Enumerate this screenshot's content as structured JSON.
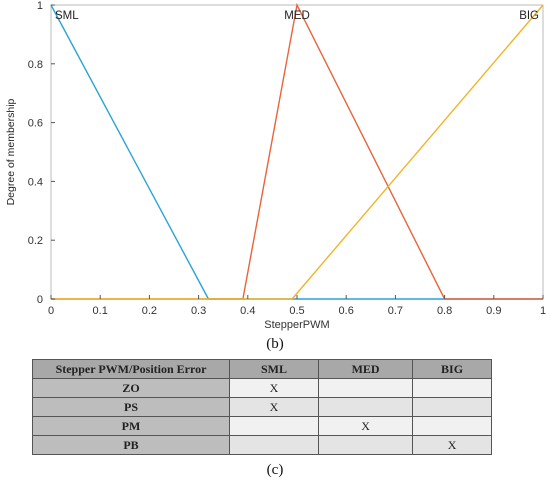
{
  "chart_data": {
    "type": "line",
    "title": "",
    "xlabel": "StepperPWM",
    "ylabel": "Degree of membership",
    "xlim": [
      0,
      1
    ],
    "ylim": [
      0,
      1
    ],
    "x_ticks": [
      "0",
      "0.1",
      "0.2",
      "0.3",
      "0.4",
      "0.5",
      "0.6",
      "0.7",
      "0.8",
      "0.9",
      "1"
    ],
    "y_ticks": [
      "0",
      "0.2",
      "0.4",
      "0.6",
      "0.8",
      "1"
    ],
    "grid": false,
    "series": [
      {
        "name": "SML",
        "color": "#2aa3d8",
        "x": [
          0,
          0.32,
          1
        ],
        "y": [
          1,
          0,
          0
        ]
      },
      {
        "name": "MED",
        "color": "#e8643c",
        "x": [
          0,
          0.39,
          0.5,
          0.8,
          1
        ],
        "y": [
          0,
          0,
          1,
          0,
          0
        ]
      },
      {
        "name": "BIG",
        "color": "#f0b428",
        "x": [
          0,
          0.49,
          1
        ],
        "y": [
          0,
          0,
          1
        ]
      }
    ],
    "annotations": [
      {
        "text": "SML",
        "x": 0.0,
        "y": 1.0
      },
      {
        "text": "MED",
        "x": 0.5,
        "y": 1.0
      },
      {
        "text": "BIG",
        "x": 1.0,
        "y": 1.0
      }
    ]
  },
  "captions": {
    "b": "(b)",
    "c": "(c)"
  },
  "table": {
    "headers": [
      "Stepper PWM/Position Error",
      "SML",
      "MED",
      "BIG"
    ],
    "rows": [
      {
        "label": "ZO",
        "cells": [
          "X",
          "",
          ""
        ]
      },
      {
        "label": "PS",
        "cells": [
          "X",
          "",
          ""
        ]
      },
      {
        "label": "PM",
        "cells": [
          "",
          "X",
          ""
        ]
      },
      {
        "label": "PB",
        "cells": [
          "",
          "",
          "X"
        ]
      }
    ]
  }
}
